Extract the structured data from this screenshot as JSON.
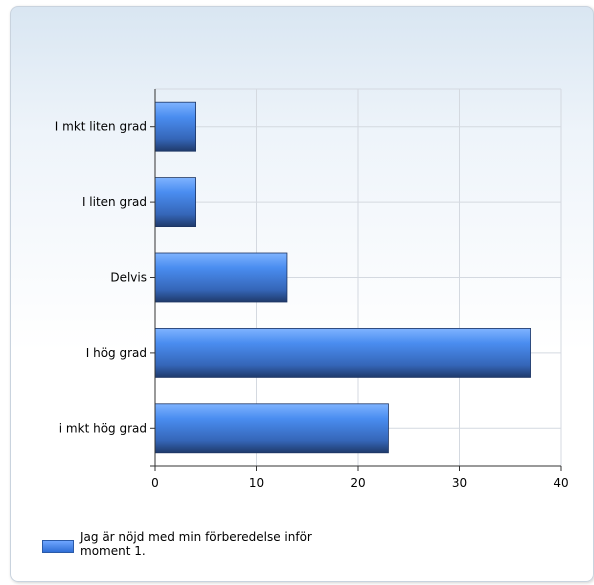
{
  "chart_data": {
    "type": "bar",
    "orientation": "horizontal",
    "categories": [
      "I mkt liten grad",
      "I liten grad",
      "Delvis",
      "I hög grad",
      "i mkt hög grad"
    ],
    "series": [
      {
        "name": "Jag är nöjd med min förberedelse inför moment 1.",
        "values": [
          4,
          4,
          13,
          37,
          23
        ]
      }
    ],
    "xlim": [
      0,
      40
    ],
    "xticks": [
      0,
      10,
      20,
      30,
      40
    ],
    "grid": true,
    "legend_position": "bottom-left",
    "colors": {
      "bar_top": "#6ea6ff",
      "bar_mid": "#3f7fe6",
      "bar_bottom": "#233f70"
    }
  }
}
